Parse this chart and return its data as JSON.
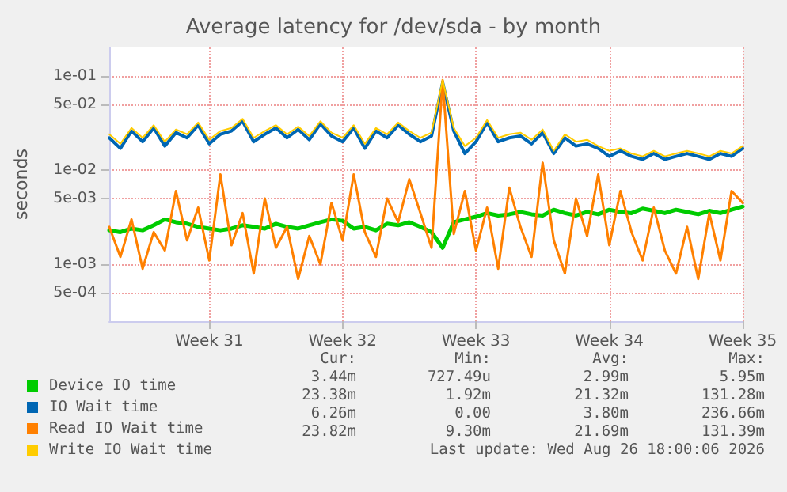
{
  "chart_data": {
    "type": "line",
    "title": "Average latency for /dev/sda - by month",
    "ylabel": "seconds",
    "log": "y",
    "grid": true,
    "legend": "bottom",
    "marker": "none",
    "line_style": "solid",
    "categories": [
      null,
      null,
      null,
      null,
      null,
      null,
      null,
      null,
      null,
      "Week 31",
      null,
      null,
      null,
      null,
      null,
      null,
      null,
      null,
      null,
      null,
      null,
      "Week 32",
      null,
      null,
      null,
      null,
      null,
      null,
      null,
      null,
      null,
      null,
      null,
      "Week 33",
      null,
      null,
      null,
      null,
      null,
      null,
      null,
      null,
      null,
      null,
      null,
      "Week 34",
      null,
      null,
      null,
      null,
      null,
      null,
      null,
      null,
      null,
      null,
      null,
      "Week 35"
    ],
    "ylim": [
      0.00025,
      0.2
    ],
    "yticks": [
      {
        "value": 0.0005,
        "label": "5e-04"
      },
      {
        "value": 0.001,
        "label": "1e-03"
      },
      {
        "value": 0.005,
        "label": "5e-03"
      },
      {
        "value": 0.01,
        "label": "1e-02"
      },
      {
        "value": 0.05,
        "label": "5e-02"
      },
      {
        "value": 0.1,
        "label": "1e-01"
      }
    ],
    "series": [
      {
        "name": "Device IO time",
        "color": "#00cc00",
        "values": [
          0.0023,
          0.0022,
          0.0024,
          0.0023,
          0.0026,
          0.003,
          0.0028,
          0.0027,
          0.0025,
          0.0024,
          0.0023,
          0.0024,
          0.0026,
          0.0025,
          0.0024,
          0.0027,
          0.0025,
          0.0024,
          0.0026,
          0.0028,
          0.003,
          0.0029,
          0.0024,
          0.0025,
          0.0023,
          0.0027,
          0.0026,
          0.0028,
          0.0025,
          0.0022,
          0.0015,
          0.0028,
          0.003,
          0.0032,
          0.0035,
          0.0033,
          0.0034,
          0.0036,
          0.0034,
          0.0033,
          0.0038,
          0.0035,
          0.0033,
          0.0036,
          0.0034,
          0.0038,
          0.0036,
          0.0035,
          0.0039,
          0.0037,
          0.0035,
          0.0038,
          0.0036,
          0.0034,
          0.0037,
          0.0035,
          0.0038,
          0.0041
        ]
      },
      {
        "name": "IO Wait time",
        "color": "#0066b3",
        "values": [
          0.022,
          0.017,
          0.026,
          0.02,
          0.028,
          0.018,
          0.025,
          0.022,
          0.03,
          0.019,
          0.024,
          0.026,
          0.033,
          0.02,
          0.024,
          0.028,
          0.022,
          0.027,
          0.021,
          0.031,
          0.023,
          0.02,
          0.028,
          0.017,
          0.026,
          0.022,
          0.03,
          0.024,
          0.02,
          0.023,
          0.085,
          0.026,
          0.015,
          0.02,
          0.032,
          0.02,
          0.022,
          0.023,
          0.019,
          0.025,
          0.015,
          0.022,
          0.018,
          0.019,
          0.017,
          0.014,
          0.016,
          0.014,
          0.013,
          0.015,
          0.013,
          0.014,
          0.015,
          0.014,
          0.013,
          0.015,
          0.014,
          0.017
        ]
      },
      {
        "name": "Read IO Wait time",
        "color": "#ff8000",
        "values": [
          0.0025,
          0.0012,
          0.003,
          0.0009,
          0.0022,
          0.0014,
          0.006,
          0.0018,
          0.004,
          0.0011,
          0.009,
          0.0016,
          0.0035,
          0.0008,
          0.005,
          0.0015,
          0.0025,
          0.0007,
          0.002,
          0.001,
          0.0045,
          0.0018,
          0.009,
          0.0022,
          0.0012,
          0.005,
          0.0028,
          0.008,
          0.0035,
          0.0015,
          0.09,
          0.0021,
          0.006,
          0.0014,
          0.004,
          0.0009,
          0.0065,
          0.0025,
          0.0012,
          0.012,
          0.0018,
          0.0008,
          0.005,
          0.002,
          0.009,
          0.0016,
          0.006,
          0.0022,
          0.0011,
          0.004,
          0.0014,
          0.0008,
          0.0025,
          0.0007,
          0.0035,
          0.0011,
          0.006,
          0.0045
        ]
      },
      {
        "name": "Write IO Wait time",
        "color": "#ffcc00",
        "values": [
          0.024,
          0.019,
          0.028,
          0.022,
          0.03,
          0.02,
          0.027,
          0.024,
          0.032,
          0.021,
          0.026,
          0.028,
          0.035,
          0.022,
          0.026,
          0.03,
          0.024,
          0.029,
          0.023,
          0.033,
          0.025,
          0.022,
          0.03,
          0.019,
          0.028,
          0.024,
          0.032,
          0.026,
          0.022,
          0.025,
          0.09,
          0.028,
          0.018,
          0.022,
          0.034,
          0.022,
          0.024,
          0.025,
          0.021,
          0.027,
          0.016,
          0.024,
          0.02,
          0.021,
          0.018,
          0.016,
          0.017,
          0.015,
          0.014,
          0.016,
          0.014,
          0.015,
          0.016,
          0.015,
          0.014,
          0.016,
          0.015,
          0.018
        ]
      }
    ],
    "annotations": [
      "Cur:",
      "Min:",
      "Avg:",
      "Max:",
      "3.44m",
      "727.49u",
      "2.99m",
      "5.95m",
      "23.38m",
      "1.92m",
      "21.32m",
      "131.28m",
      "6.26m",
      "0.00",
      "3.80m",
      "236.66m",
      "23.82m",
      "9.30m",
      "21.69m",
      "131.39m",
      "Last update: Wed Aug 26 18:00:06 2026"
    ]
  }
}
